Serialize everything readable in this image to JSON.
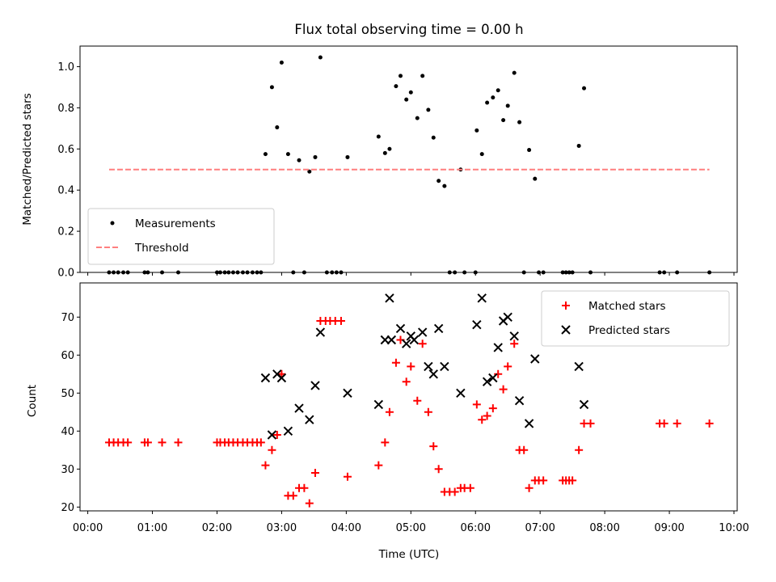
{
  "chart_data": [
    {
      "type": "scatter",
      "title": "Flux total observing time = 0.00 h",
      "xlabel": "",
      "ylabel": "Matched/Predicted stars",
      "xlim": [
        -0.12,
        10.05
      ],
      "ylim": [
        0.0,
        1.1
      ],
      "yticks": [
        "0.0",
        "0.2",
        "0.4",
        "0.6",
        "0.8",
        "1.0"
      ],
      "legend_position": "lower-left",
      "series": [
        {
          "name": "Measurements",
          "marker": "dot",
          "color": "#000000",
          "points": [
            [
              0.33,
              0
            ],
            [
              0.4,
              0
            ],
            [
              0.47,
              0
            ],
            [
              0.55,
              0
            ],
            [
              0.62,
              0
            ],
            [
              0.88,
              0
            ],
            [
              0.93,
              0
            ],
            [
              1.15,
              0
            ],
            [
              1.4,
              0
            ],
            [
              2.0,
              0
            ],
            [
              2.05,
              0
            ],
            [
              2.12,
              0
            ],
            [
              2.18,
              0
            ],
            [
              2.25,
              0
            ],
            [
              2.32,
              0
            ],
            [
              2.4,
              0
            ],
            [
              2.47,
              0
            ],
            [
              2.55,
              0
            ],
            [
              2.62,
              0
            ],
            [
              2.68,
              0
            ],
            [
              3.18,
              0
            ],
            [
              3.35,
              0
            ],
            [
              3.7,
              0
            ],
            [
              3.78,
              0
            ],
            [
              3.85,
              0
            ],
            [
              3.92,
              0
            ],
            [
              5.6,
              0
            ],
            [
              5.68,
              0
            ],
            [
              5.83,
              0
            ],
            [
              6.0,
              0
            ],
            [
              6.75,
              0
            ],
            [
              6.98,
              0
            ],
            [
              7.05,
              0
            ],
            [
              7.35,
              0
            ],
            [
              7.4,
              0
            ],
            [
              7.45,
              0
            ],
            [
              7.5,
              0
            ],
            [
              7.78,
              0
            ],
            [
              8.85,
              0
            ],
            [
              8.92,
              0
            ],
            [
              9.12,
              0
            ],
            [
              9.62,
              0
            ],
            [
              2.75,
              0.575
            ],
            [
              2.85,
              0.9
            ],
            [
              2.93,
              0.705
            ],
            [
              3.0,
              1.02
            ],
            [
              3.1,
              0.575
            ],
            [
              3.27,
              0.545
            ],
            [
              3.43,
              0.49
            ],
            [
              3.52,
              0.56
            ],
            [
              3.6,
              1.045
            ],
            [
              4.02,
              0.56
            ],
            [
              4.5,
              0.66
            ],
            [
              4.6,
              0.58
            ],
            [
              4.67,
              0.6
            ],
            [
              4.77,
              0.905
            ],
            [
              4.84,
              0.955
            ],
            [
              4.93,
              0.84
            ],
            [
              5.0,
              0.875
            ],
            [
              5.1,
              0.75
            ],
            [
              5.18,
              0.955
            ],
            [
              5.27,
              0.79
            ],
            [
              5.35,
              0.655
            ],
            [
              5.43,
              0.445
            ],
            [
              5.52,
              0.42
            ],
            [
              5.77,
              0.5
            ],
            [
              6.02,
              0.69
            ],
            [
              6.1,
              0.575
            ],
            [
              6.18,
              0.825
            ],
            [
              6.27,
              0.85
            ],
            [
              6.35,
              0.885
            ],
            [
              6.43,
              0.74
            ],
            [
              6.5,
              0.81
            ],
            [
              6.6,
              0.97
            ],
            [
              6.68,
              0.73
            ],
            [
              6.83,
              0.595
            ],
            [
              6.92,
              0.455
            ],
            [
              7.6,
              0.615
            ],
            [
              7.68,
              0.895
            ]
          ]
        },
        {
          "name": "Threshold",
          "style": "dashed",
          "color": "#ff7f7f",
          "x": [
            0.33,
            9.62
          ],
          "y": [
            0.5,
            0.5
          ]
        }
      ]
    },
    {
      "type": "scatter",
      "title": "",
      "xlabel": "Time (UTC)",
      "ylabel": "Count",
      "xlim": [
        -0.12,
        10.05
      ],
      "ylim": [
        19,
        79
      ],
      "yticks": [
        "20",
        "30",
        "40",
        "50",
        "60",
        "70"
      ],
      "xticks": [
        {
          "value": 0,
          "label": "00:00"
        },
        {
          "value": 1,
          "label": "01:00"
        },
        {
          "value": 2,
          "label": "02:00"
        },
        {
          "value": 3,
          "label": "03:00"
        },
        {
          "value": 4,
          "label": "04:00"
        },
        {
          "value": 5,
          "label": "05:00"
        },
        {
          "value": 6,
          "label": "06:00"
        },
        {
          "value": 7,
          "label": "07:00"
        },
        {
          "value": 8,
          "label": "08:00"
        },
        {
          "value": 9,
          "label": "09:00"
        },
        {
          "value": 10,
          "label": "10:00"
        }
      ],
      "legend_position": "upper-right",
      "series": [
        {
          "name": "Matched stars",
          "marker": "plus",
          "color": "#ff0000",
          "points": [
            [
              0.33,
              37
            ],
            [
              0.4,
              37
            ],
            [
              0.47,
              37
            ],
            [
              0.55,
              37
            ],
            [
              0.62,
              37
            ],
            [
              0.88,
              37
            ],
            [
              0.93,
              37
            ],
            [
              1.15,
              37
            ],
            [
              1.4,
              37
            ],
            [
              2.0,
              37
            ],
            [
              2.05,
              37
            ],
            [
              2.12,
              37
            ],
            [
              2.18,
              37
            ],
            [
              2.25,
              37
            ],
            [
              2.32,
              37
            ],
            [
              2.4,
              37
            ],
            [
              2.47,
              37
            ],
            [
              2.55,
              37
            ],
            [
              2.62,
              37
            ],
            [
              2.68,
              37
            ],
            [
              2.75,
              31
            ],
            [
              2.85,
              35
            ],
            [
              2.93,
              39
            ],
            [
              3.0,
              55
            ],
            [
              3.1,
              23
            ],
            [
              3.18,
              23
            ],
            [
              3.27,
              25
            ],
            [
              3.35,
              25
            ],
            [
              3.43,
              21
            ],
            [
              3.52,
              29
            ],
            [
              3.6,
              69
            ],
            [
              3.68,
              69
            ],
            [
              3.75,
              69
            ],
            [
              3.83,
              69
            ],
            [
              3.92,
              69
            ],
            [
              4.02,
              28
            ],
            [
              4.5,
              31
            ],
            [
              4.6,
              37
            ],
            [
              4.67,
              45
            ],
            [
              4.77,
              58
            ],
            [
              4.84,
              64
            ],
            [
              4.93,
              53
            ],
            [
              5.0,
              57
            ],
            [
              5.1,
              48
            ],
            [
              5.18,
              63
            ],
            [
              5.27,
              45
            ],
            [
              5.35,
              36
            ],
            [
              5.43,
              30
            ],
            [
              5.52,
              24
            ],
            [
              5.6,
              24
            ],
            [
              5.68,
              24
            ],
            [
              5.77,
              25
            ],
            [
              5.83,
              25
            ],
            [
              5.92,
              25
            ],
            [
              6.02,
              47
            ],
            [
              6.1,
              43
            ],
            [
              6.18,
              44
            ],
            [
              6.27,
              46
            ],
            [
              6.35,
              55
            ],
            [
              6.43,
              51
            ],
            [
              6.5,
              57
            ],
            [
              6.6,
              63
            ],
            [
              6.68,
              35
            ],
            [
              6.75,
              35
            ],
            [
              6.83,
              25
            ],
            [
              6.92,
              27
            ],
            [
              6.98,
              27
            ],
            [
              7.05,
              27
            ],
            [
              7.35,
              27
            ],
            [
              7.4,
              27
            ],
            [
              7.45,
              27
            ],
            [
              7.5,
              27
            ],
            [
              7.6,
              35
            ],
            [
              7.68,
              42
            ],
            [
              7.78,
              42
            ],
            [
              8.85,
              42
            ],
            [
              8.92,
              42
            ],
            [
              9.12,
              42
            ],
            [
              9.62,
              42
            ]
          ]
        },
        {
          "name": "Predicted stars",
          "marker": "x",
          "color": "#000000",
          "points": [
            [
              2.75,
              54
            ],
            [
              2.85,
              39
            ],
            [
              2.93,
              55
            ],
            [
              3.0,
              54
            ],
            [
              3.1,
              40
            ],
            [
              3.27,
              46
            ],
            [
              3.43,
              43
            ],
            [
              3.52,
              52
            ],
            [
              3.6,
              66
            ],
            [
              4.02,
              50
            ],
            [
              4.5,
              47
            ],
            [
              4.6,
              64
            ],
            [
              4.67,
              75
            ],
            [
              4.7,
              64
            ],
            [
              4.84,
              67
            ],
            [
              4.93,
              63
            ],
            [
              5.0,
              65
            ],
            [
              5.05,
              64
            ],
            [
              5.18,
              66
            ],
            [
              5.27,
              57
            ],
            [
              5.35,
              55
            ],
            [
              5.43,
              67
            ],
            [
              5.52,
              57
            ],
            [
              5.77,
              50
            ],
            [
              6.02,
              68
            ],
            [
              6.1,
              75
            ],
            [
              6.18,
              53
            ],
            [
              6.27,
              54
            ],
            [
              6.35,
              62
            ],
            [
              6.43,
              69
            ],
            [
              6.5,
              70
            ],
            [
              6.6,
              65
            ],
            [
              6.68,
              48
            ],
            [
              6.83,
              42
            ],
            [
              6.92,
              59
            ],
            [
              7.6,
              57
            ],
            [
              7.68,
              47
            ]
          ]
        }
      ]
    }
  ]
}
